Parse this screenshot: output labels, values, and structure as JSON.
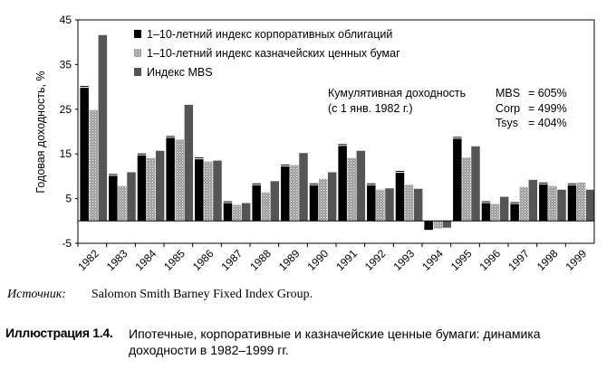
{
  "chart_data": {
    "type": "bar",
    "ylabel": "Годовая доходность, %",
    "ylim": [
      -5,
      45
    ],
    "yticks": [
      "-5",
      "5",
      "15",
      "25",
      "35",
      "45"
    ],
    "ytick_values": [
      -5,
      5,
      15,
      25,
      35,
      45
    ],
    "categories": [
      "1982",
      "1983",
      "1984",
      "1985",
      "1986",
      "1987",
      "1988",
      "1989",
      "1990",
      "1991",
      "1992",
      "1993",
      "1994",
      "1995",
      "1996",
      "1997",
      "1998",
      "1999"
    ],
    "series": [
      {
        "name": "1–10-летний индекс корпоративных облигаций",
        "color": "#000000",
        "values": [
          29.8,
          10.1,
          14.7,
          18.6,
          13.8,
          4.0,
          8.0,
          12.2,
          8.0,
          16.8,
          8.0,
          10.8,
          -2.0,
          18.4,
          4.0,
          3.8,
          8.2,
          8.0
        ]
      },
      {
        "name": "1–10-летний индекс казначейских ценных бумаг",
        "color": "#a8a8a8",
        "values": [
          24.8,
          7.8,
          14.1,
          18.2,
          13.3,
          3.6,
          6.4,
          12.5,
          9.4,
          14.1,
          7.0,
          8.1,
          -1.7,
          14.2,
          3.8,
          7.6,
          7.8,
          8.6
        ]
      },
      {
        "name": "Индекс MBS",
        "color": "#555555",
        "values": [
          41.6,
          10.9,
          15.7,
          26.0,
          13.5,
          4.0,
          8.9,
          15.2,
          10.9,
          15.7,
          7.3,
          7.2,
          -1.5,
          16.7,
          5.4,
          9.2,
          7.0,
          7.0
        ]
      }
    ],
    "legend_position": "top-left",
    "grid": false,
    "annotation": {
      "line1": "Кумулятивная доходность",
      "line2": "(с 1 янв. 1982 г.)",
      "items": [
        {
          "label": "MBS",
          "value": "= 605%"
        },
        {
          "label": "Corp",
          "value": "= 499%"
        },
        {
          "label": "Tsys",
          "value": "= 404%"
        }
      ]
    }
  },
  "source": {
    "label": "Источник:",
    "value": "Salomon Smith Barney Fixed Index Group."
  },
  "caption": {
    "label": "Иллюстрация 1.4.",
    "text": "Ипотечные, корпоративные и казначейские ценные бумаги: динамика доходности в 1982–1999 гг."
  }
}
